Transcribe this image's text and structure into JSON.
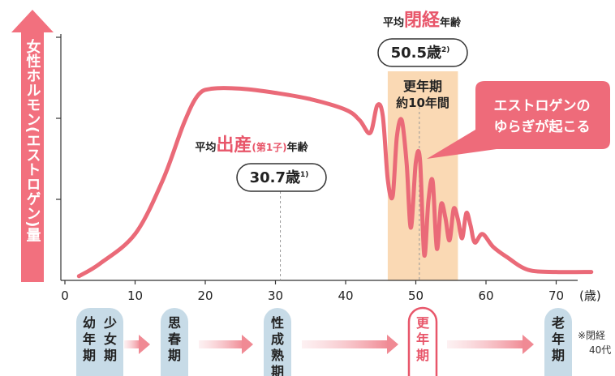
{
  "chart_data": {
    "type": "line",
    "ylabel": "女性ホルモン(エストロゲン)量",
    "xunit": "(歳)",
    "xlim": [
      0,
      72
    ],
    "ylim": [
      0,
      100
    ],
    "xticks": [
      0,
      10,
      20,
      30,
      40,
      50,
      60,
      70
    ],
    "series": [
      {
        "x": [
          2,
          5,
          10,
          14,
          17,
          19,
          21,
          25,
          30,
          35,
          40,
          42,
          43.5,
          44.5,
          45.3,
          46,
          46.7,
          47.3,
          48,
          48.7,
          49.3,
          50,
          50.6,
          51.2,
          51.8,
          52.4,
          53,
          53.6,
          54.2,
          54.8,
          55.4,
          56,
          56.6,
          57.2,
          57.8,
          58.4,
          59.5,
          61,
          63,
          66,
          70,
          75
        ],
        "values": [
          2,
          8,
          22,
          48,
          75,
          88,
          91,
          91,
          89,
          86,
          81,
          76,
          70,
          83,
          78,
          48,
          40,
          68,
          76,
          55,
          25,
          56,
          57,
          12,
          38,
          47,
          15,
          36,
          30,
          19,
          34,
          29,
          20,
          32,
          26,
          18,
          22,
          16,
          11,
          5,
          4,
          4
        ]
      }
    ],
    "markers": {
      "birth": {
        "x": 30.7,
        "label_parts": [
          "平均",
          "出産",
          "(第1子)",
          "年齢"
        ],
        "value": "30.7歳",
        "sup": "1)"
      },
      "menopause": {
        "x": 50.5,
        "label_parts": [
          "平均",
          "閉経",
          "年齢"
        ],
        "value": "50.5歳",
        "sup": "2)"
      }
    },
    "band": {
      "x_range": [
        46,
        56
      ],
      "title": "更年期",
      "subtitle": "約10年間"
    },
    "callout": [
      "エストロゲンの",
      "ゆらぎが起こる"
    ]
  },
  "stages": [
    {
      "lines": [
        "少女期",
        "幼年期"
      ],
      "highlight": false
    },
    {
      "lines": [
        "思春期"
      ],
      "highlight": false
    },
    {
      "lines": [
        "性成熟期"
      ],
      "highlight": false
    },
    {
      "lines": [
        "更年期"
      ],
      "highlight": true
    },
    {
      "lines": [
        "老年期"
      ],
      "highlight": false
    }
  ],
  "footnote": [
    "※閉経",
    "40代"
  ],
  "colors": {
    "curve": "#ea6a78",
    "accent": "#e8566a",
    "arrow": "#f08a94",
    "band": "#fad9b4",
    "stage_fill": "#c7dbe7",
    "axis": "#333333",
    "tick_label": "#222222",
    "dashed": "#999999"
  }
}
